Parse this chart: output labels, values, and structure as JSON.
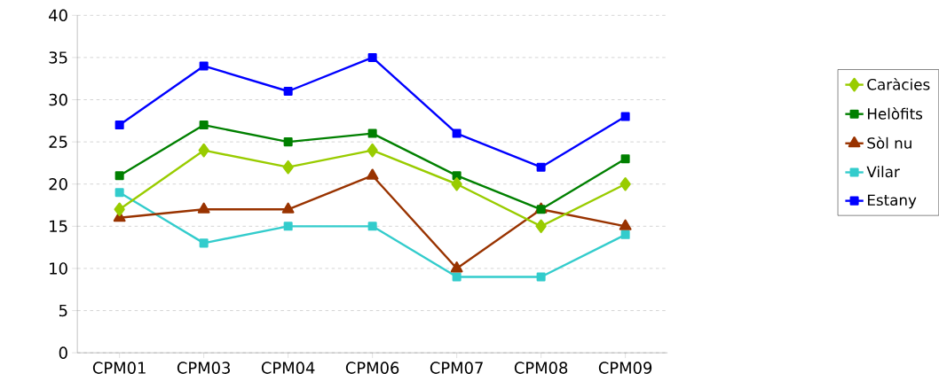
{
  "chart_data": {
    "type": "line",
    "categories": [
      "CPM01",
      "CPM03",
      "CPM04",
      "CPM06",
      "CPM07",
      "CPM08",
      "CPM09"
    ],
    "series": [
      {
        "name": "Caràcies",
        "color": "#99cc00",
        "marker": "diamond",
        "values": [
          17,
          24,
          22,
          24,
          20,
          15,
          20
        ]
      },
      {
        "name": "Helòfits",
        "color": "#008000",
        "marker": "square",
        "values": [
          21,
          27,
          25,
          26,
          21,
          17,
          23
        ]
      },
      {
        "name": "Sòl nu",
        "color": "#993300",
        "marker": "triangle",
        "values": [
          16,
          17,
          17,
          21,
          10,
          17,
          15
        ]
      },
      {
        "name": "Vilar",
        "color": "#33cccc",
        "marker": "square",
        "values": [
          19,
          13,
          15,
          15,
          9,
          9,
          14
        ]
      },
      {
        "name": "Estany",
        "color": "#0000ff",
        "marker": "square",
        "values": [
          27,
          34,
          31,
          35,
          26,
          22,
          28
        ]
      }
    ],
    "ylim": [
      0,
      40
    ],
    "yticks": [
      0,
      5,
      10,
      15,
      20,
      25,
      30,
      35,
      40
    ],
    "grid": "y",
    "legend": "right",
    "line_style": "solid"
  }
}
